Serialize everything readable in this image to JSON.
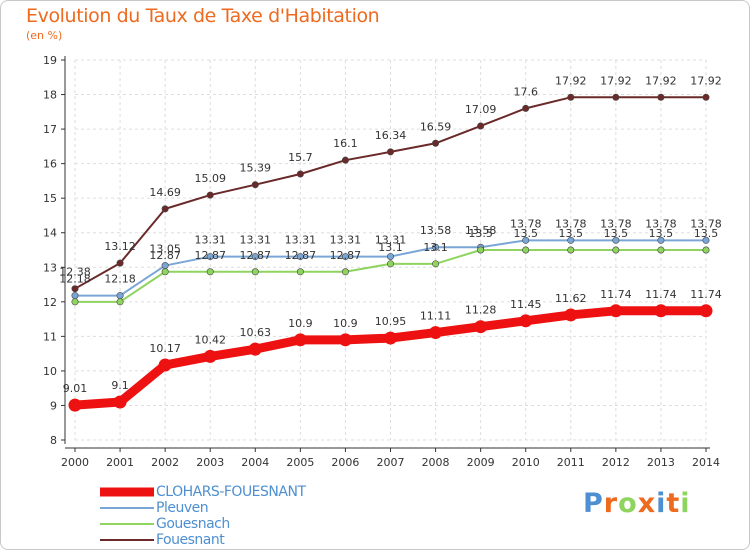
{
  "chart_data": {
    "type": "line",
    "title": "Evolution du Taux de Taxe d'Habitation",
    "unit_label": "(en %)",
    "x": [
      "2000",
      "2001",
      "2002",
      "2003",
      "2004",
      "2005",
      "2006",
      "2007",
      "2008",
      "2009",
      "2010",
      "2011",
      "2012",
      "2013",
      "2014"
    ],
    "ylim": [
      8,
      19
    ],
    "yticks": [
      8,
      9,
      10,
      11,
      12,
      13,
      14,
      15,
      16,
      17,
      18,
      19
    ],
    "grid": true,
    "legend_position": "bottom-left",
    "series": [
      {
        "name": "Fouesnant",
        "color": "#6b2a2a",
        "values": [
          12.38,
          13.12,
          14.69,
          15.09,
          15.39,
          15.7,
          16.1,
          16.34,
          16.59,
          17.09,
          17.6,
          17.92,
          17.92,
          17.92,
          17.92
        ],
        "labels": [
          "12.38",
          "13.12",
          "14.69",
          "15.09",
          "15.39",
          "15.7",
          "16.1",
          "16.34",
          "16.59",
          "17.09",
          "17.6",
          "17.92",
          "17.92",
          "17.92",
          "17.92"
        ]
      },
      {
        "name": "Pleuven",
        "color": "#7aa6d6",
        "values": [
          12.18,
          12.18,
          13.05,
          13.31,
          13.31,
          13.31,
          13.31,
          13.31,
          13.58,
          13.58,
          13.78,
          13.78,
          13.78,
          13.78,
          13.78
        ],
        "labels": [
          "12.18",
          "12.18",
          "13.05",
          "13.31",
          "13.31",
          "13.31",
          "13.31",
          "13.31",
          "13.58",
          "13.58",
          "13.78",
          "13.78",
          "13.78",
          "13.78",
          "13.78"
        ]
      },
      {
        "name": "Gouesnach",
        "color": "#8ed45e",
        "values": [
          12,
          12,
          12.87,
          12.87,
          12.87,
          12.87,
          12.87,
          13.1,
          13.1,
          13.5,
          13.5,
          13.5,
          13.5,
          13.5,
          13.5
        ],
        "labels": [
          "",
          "",
          "12.87",
          "12.87",
          "12.87",
          "12.87",
          "12.87",
          "13.1",
          "13.1",
          "13.5",
          "13.5",
          "13.5",
          "13.5",
          "13.5",
          "13.5"
        ]
      },
      {
        "name": "CLOHARS-FOUESNANT",
        "color": "#ee1111",
        "values": [
          9.01,
          9.1,
          10.17,
          10.42,
          10.63,
          10.9,
          10.9,
          10.95,
          11.11,
          11.28,
          11.45,
          11.62,
          11.74,
          11.74,
          11.74
        ],
        "labels": [
          "9.01",
          "9.1",
          "10.17",
          "10.42",
          "10.63",
          "10.9",
          "10.9",
          "10.95",
          "11.11",
          "11.28",
          "11.45",
          "11.62",
          "11.74",
          "11.74",
          "11.74"
        ]
      }
    ]
  },
  "legend": [
    {
      "name": "CLOHARS-FOUESNANT",
      "color": "#ee1111"
    },
    {
      "name": "Pleuven",
      "color": "#7aa6d6"
    },
    {
      "name": "Gouesnach",
      "color": "#8ed45e"
    },
    {
      "name": "Fouesnant",
      "color": "#6b2a2a"
    }
  ],
  "logo": {
    "letters": [
      "P",
      "r",
      "o",
      "x",
      "i",
      "t",
      "i"
    ],
    "colors": [
      "#4e8fd1",
      "#ee6a1e",
      "#8ed45e",
      "#ee6a1e",
      "#4e8fd1",
      "#ee6a1e",
      "#8ed45e"
    ]
  }
}
